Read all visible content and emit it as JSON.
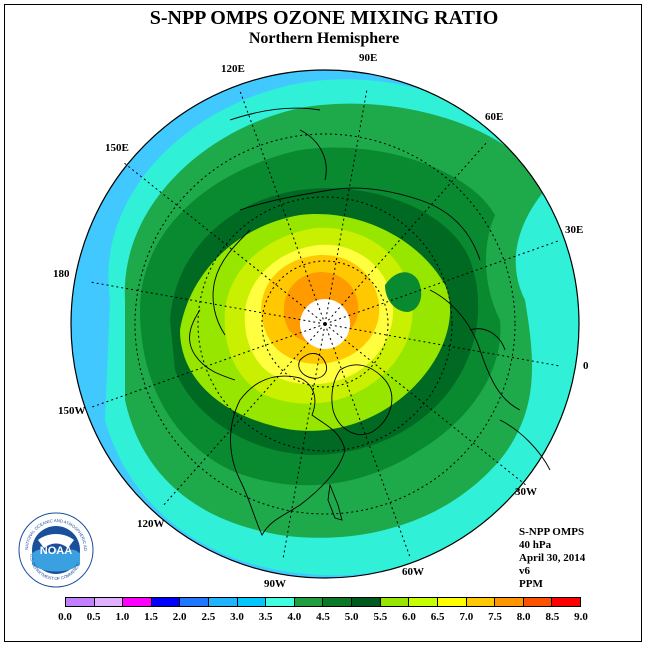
{
  "title": "S-NPP OMPS OZONE MIXING RATIO",
  "subtitle": "Northern Hemisphere",
  "longitude_labels": {
    "e120": "120E",
    "e90": "90E",
    "e60": "60E",
    "e30": "30E",
    "e0": "0",
    "w30": "30W",
    "w60": "60W",
    "w90": "90W",
    "w120": "120W",
    "w150": "150W",
    "e180": "180",
    "e150": "150E"
  },
  "info": {
    "instrument": "S-NPP OMPS",
    "level": "40 hPa",
    "date": "April 30, 2014",
    "version": "v6",
    "units": "PPM"
  },
  "logo": {
    "text": "NOAA",
    "ring_text": "NATIONAL OCEANIC AND ATMOSPHERIC ADMINISTRATION",
    "ring_text_bottom": "U.S. DEPARTMENT OF COMMERCE"
  },
  "colorbar": {
    "ticks": [
      "0.0",
      "0.5",
      "1.0",
      "1.5",
      "2.0",
      "2.5",
      "3.0",
      "3.5",
      "4.0",
      "4.5",
      "5.0",
      "5.5",
      "6.0",
      "6.5",
      "7.0",
      "7.5",
      "8.0",
      "8.5",
      "9.0"
    ],
    "colors": [
      "#c080ff",
      "#e0b0ff",
      "#ff00ff",
      "#0000ff",
      "#1e78ff",
      "#1eb4ff",
      "#00c8ff",
      "#40ffe0",
      "#1e9e3c",
      "#0a7a28",
      "#005a1e",
      "#96e600",
      "#c8ff00",
      "#ffff00",
      "#ffc800",
      "#ff9600",
      "#ff5000",
      "#ff0000",
      "#a05028"
    ]
  },
  "map_colors": {
    "outer": "#40c8ff",
    "band35": "#30f0d8",
    "band40": "#1eaa4a",
    "band45": "#0a8a30",
    "band50": "#006a22",
    "band55": "#96e600",
    "band60": "#c8f000",
    "band65": "#ffff40",
    "band70": "#ffc800",
    "band75": "#ff9a00",
    "pole": "#ffffff"
  }
}
